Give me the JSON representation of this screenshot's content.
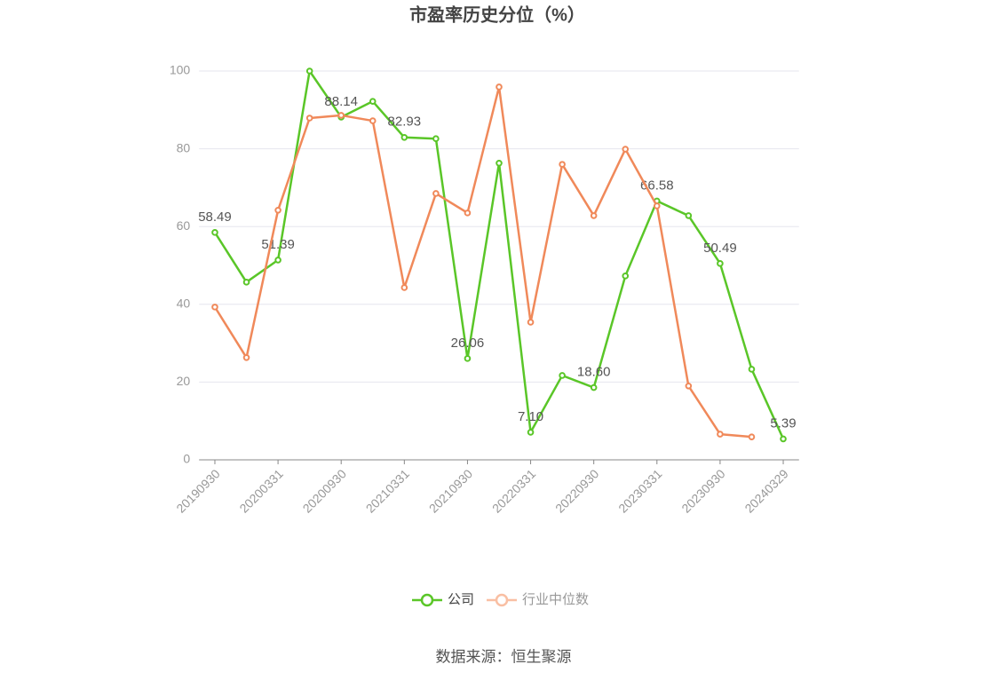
{
  "chart_data": {
    "type": "line",
    "title": "市盈率历史分位（%）",
    "categories": [
      "20190930",
      null,
      "20200331",
      null,
      "20200930",
      null,
      "20210331",
      null,
      "20210930",
      null,
      "20220331",
      null,
      "20220930",
      null,
      "20230331",
      null,
      "20230930",
      null,
      "20240329"
    ],
    "series": [
      {
        "name": "公司",
        "color": "#5ac628",
        "values": [
          58.49,
          45.7,
          51.39,
          100.0,
          88.14,
          92.2,
          82.93,
          82.6,
          26.06,
          76.3,
          7.1,
          21.7,
          18.6,
          47.3,
          66.58,
          62.8,
          50.49,
          23.3,
          5.39
        ],
        "value_labels": [
          "58.49",
          null,
          "51.39",
          null,
          "88.14",
          null,
          "82.93",
          null,
          "26.06",
          null,
          "7.10",
          null,
          "18.60",
          null,
          "66.58",
          null,
          "50.49",
          null,
          "5.39"
        ]
      },
      {
        "name": "行业中位数",
        "color": "#f0895a",
        "values": [
          39.3,
          26.3,
          64.2,
          87.9,
          88.6,
          87.2,
          44.3,
          68.5,
          63.5,
          95.9,
          35.4,
          76.0,
          62.8,
          79.9,
          65.3,
          19.0,
          6.6,
          5.9,
          null
        ]
      }
    ],
    "ylim": [
      0,
      100
    ],
    "yticks": [
      0,
      20,
      40,
      60,
      80,
      100
    ],
    "grid": true,
    "legend": "bottom",
    "source": "数据来源：恒生聚源"
  }
}
